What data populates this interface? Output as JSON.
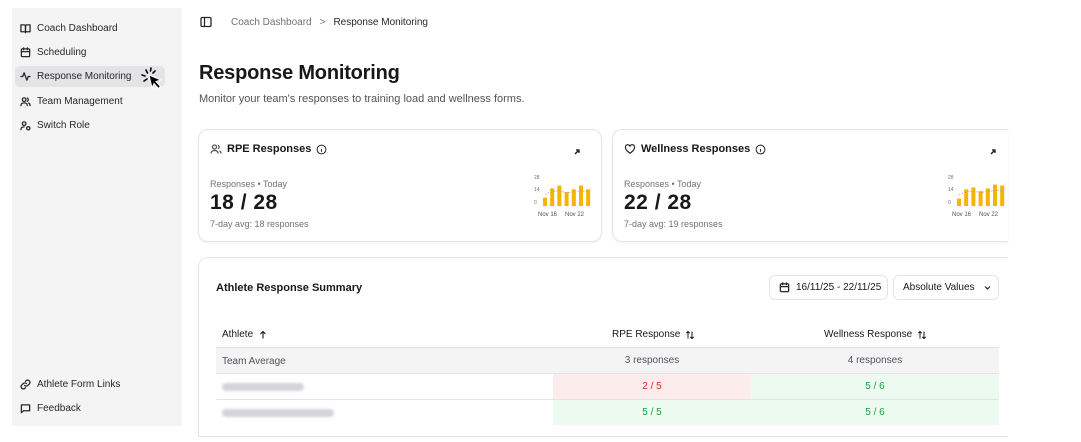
{
  "sidebar": {
    "items": [
      {
        "label": "Coach Dashboard",
        "icon": "book-open-icon"
      },
      {
        "label": "Scheduling",
        "icon": "calendar-icon"
      },
      {
        "label": "Response Monitoring",
        "icon": "activity-icon",
        "active": true
      },
      {
        "label": "Team Management",
        "icon": "users-icon"
      },
      {
        "label": "Switch Role",
        "icon": "user-switch-icon"
      }
    ],
    "footer": [
      {
        "label": "Athlete Form Links",
        "icon": "link-icon"
      },
      {
        "label": "Feedback",
        "icon": "message-square-icon"
      }
    ]
  },
  "breadcrumb": {
    "parent": "Coach Dashboard",
    "separator": ">",
    "current": "Response Monitoring"
  },
  "page": {
    "title": "Response Monitoring",
    "subtitle": "Monitor your team's responses to training load and wellness forms."
  },
  "cards": [
    {
      "title": "RPE Responses",
      "icon": "users-icon",
      "sub": "Responses • Today",
      "value": "18 / 28",
      "avg": "7-day avg: 18 responses",
      "chart": {
        "yticks": [
          "28",
          "14",
          "0"
        ],
        "xlabels": [
          "Nov 16",
          "Nov 22"
        ],
        "values": [
          9,
          19,
          22,
          15,
          18,
          22,
          18
        ],
        "max": 28
      }
    },
    {
      "title": "Wellness Responses",
      "icon": "heart-icon",
      "sub": "Responses • Today",
      "value": "22 / 28",
      "avg": "7-day avg: 19 responses",
      "chart": {
        "yticks": [
          "28",
          "14",
          "0"
        ],
        "xlabels": [
          "Nov 16",
          "Nov 22"
        ],
        "values": [
          8,
          18,
          20,
          16,
          19,
          23,
          22
        ],
        "max": 28
      }
    }
  ],
  "summary": {
    "title": "Athlete Response Summary",
    "date_range": "16/11/25 - 22/11/25",
    "mode": "Absolute Values",
    "columns": {
      "athlete": "Athlete",
      "rpe": "RPE Response",
      "wellness": "Wellness Response"
    },
    "team_average": {
      "name": "Team Average",
      "rpe": "3 responses",
      "wellness": "4 responses"
    },
    "rows": [
      {
        "rpe": "2 / 5",
        "rpe_status": "bad",
        "wellness": "5 / 6",
        "wellness_status": "good"
      },
      {
        "rpe": "5 / 5",
        "rpe_status": "good",
        "wellness": "5 / 6",
        "wellness_status": "good"
      }
    ]
  },
  "colors": {
    "accent_bar": "#f5b400",
    "bad_bg": "#fdecec",
    "bad_text": "#dc2626",
    "good_bg": "#ecfaef",
    "good_text": "#16a34a"
  }
}
